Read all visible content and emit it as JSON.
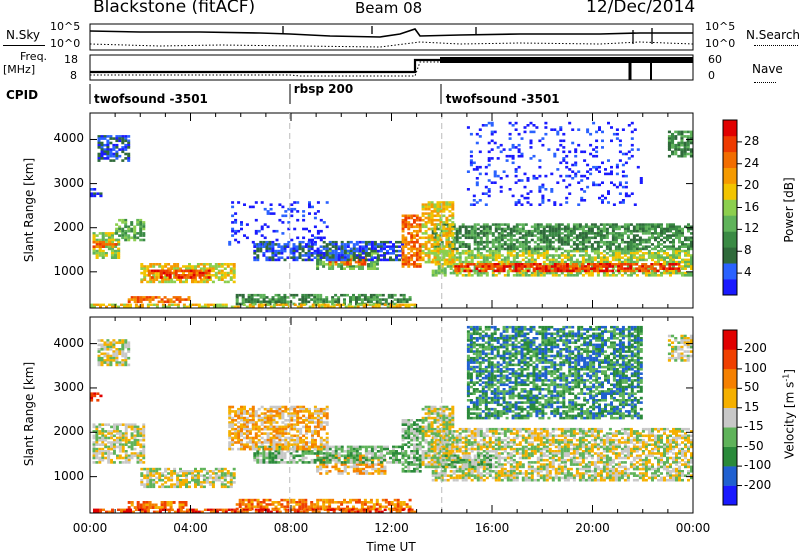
{
  "header": {
    "station": "Blackstone (fitACF)",
    "beam": "Beam 08",
    "date": "12/Dec/2014"
  },
  "summary_panels": {
    "nsky_label": "N.Sky",
    "nsearch_label": "N.Search",
    "freq_label_1": "Freq.",
    "freq_label_2": "[MHz]",
    "nave_label": "Nave",
    "cpid_label": "CPID",
    "n_ticks": [
      "10^5",
      "10^0"
    ],
    "freq_ticks": [
      "18",
      "8"
    ],
    "nave_ticks": [
      "60",
      "0"
    ]
  },
  "cpid_segments": [
    {
      "label": "twofsound -3501",
      "start_hour": 0.0
    },
    {
      "label": "rbsp 200",
      "start_hour": 7.95
    },
    {
      "label": "twofsound -3501",
      "start_hour": 14.0
    }
  ],
  "colorbars": {
    "power": {
      "title": "Power [dB]",
      "ticks": [
        "28",
        "24",
        "20",
        "16",
        "12",
        "8",
        "4"
      ],
      "colors": [
        "#1a1aff",
        "#2a62ff",
        "#2f6a3a",
        "#3a8a44",
        "#5fb35a",
        "#8ccf4e",
        "#f2c400",
        "#f59a00",
        "#f26d00",
        "#ee3a00",
        "#e00000"
      ]
    },
    "velocity": {
      "title_main": "Velocity [m s",
      "title_exp": "-1",
      "title_end": "]",
      "ticks": [
        "200",
        "100",
        "50",
        "15",
        "-15",
        "-50",
        "-100",
        "-200"
      ],
      "colors": [
        "#1a1aff",
        "#2060d0",
        "#2a8a3a",
        "#5fb35a",
        "#c8c8c8",
        "#f5b000",
        "#f58000",
        "#f04000",
        "#e00000"
      ]
    }
  },
  "chart_data": [
    {
      "type": "heatmap",
      "name": "power",
      "ylabel": "Slant Range [km]",
      "ylim": [
        180,
        4600
      ],
      "yticks": [
        "1000",
        "2000",
        "3000",
        "4000"
      ],
      "xlim": [
        0,
        24
      ],
      "scatter_bands": [
        {
          "x0": 0.1,
          "x1": 1.2,
          "y0": 1300,
          "y1": 1900,
          "level": 5
        },
        {
          "x0": 0.1,
          "x1": 1.1,
          "y0": 1550,
          "y1": 1700,
          "level": 8
        },
        {
          "x0": 1.0,
          "x1": 2.2,
          "y0": 1700,
          "y1": 2200,
          "level": 4
        },
        {
          "x0": 2.0,
          "x1": 5.8,
          "y0": 750,
          "y1": 1200,
          "level": 6
        },
        {
          "x0": 2.3,
          "x1": 4.8,
          "y0": 850,
          "y1": 1050,
          "level": 9
        },
        {
          "x0": 1.5,
          "x1": 4.0,
          "y0": 300,
          "y1": 450,
          "level": 8
        },
        {
          "x0": 5.8,
          "x1": 12.8,
          "y0": 250,
          "y1": 500,
          "level": 3
        },
        {
          "x0": 0.0,
          "x1": 13.0,
          "y0": 190,
          "y1": 280,
          "level": 6
        },
        {
          "x0": 9.0,
          "x1": 11.5,
          "y0": 1050,
          "y1": 1500,
          "level": 4
        },
        {
          "x0": 9.5,
          "x1": 11.0,
          "y0": 1150,
          "y1": 1350,
          "level": 8
        },
        {
          "x0": 6.5,
          "x1": 12.5,
          "y0": 1250,
          "y1": 1700,
          "level": 1
        },
        {
          "x0": 12.4,
          "x1": 13.2,
          "y0": 1100,
          "y1": 2300,
          "level": 8
        },
        {
          "x0": 13.6,
          "x1": 24.0,
          "y0": 900,
          "y1": 1500,
          "level": 5
        },
        {
          "x0": 14.5,
          "x1": 23.5,
          "y0": 1000,
          "y1": 1200,
          "level": 9
        },
        {
          "x0": 13.6,
          "x1": 24.0,
          "y0": 1500,
          "y1": 2100,
          "level": 3
        },
        {
          "x0": 13.2,
          "x1": 14.5,
          "y0": 1200,
          "y1": 2600,
          "level": 6
        },
        {
          "x0": 0.3,
          "x1": 1.6,
          "y0": 3500,
          "y1": 4100,
          "level": 1
        },
        {
          "x0": 0.0,
          "x1": 0.5,
          "y0": 2700,
          "y1": 2900,
          "level": 1
        },
        {
          "x0": 23.0,
          "x1": 24.0,
          "y0": 3600,
          "y1": 4200,
          "level": 3
        },
        {
          "x0": 5.5,
          "x1": 9.5,
          "y0": 1600,
          "y1": 2600,
          "level": 0
        },
        {
          "x0": 15.0,
          "x1": 22.0,
          "y0": 2500,
          "y1": 4400,
          "level": 0
        }
      ]
    },
    {
      "type": "heatmap",
      "name": "velocity",
      "ylabel": "Slant Range [km]",
      "xlabel": "Time UT",
      "ylim": [
        180,
        4600
      ],
      "yticks": [
        "1000",
        "2000",
        "3000",
        "4000"
      ],
      "xlim": [
        0,
        24
      ],
      "xticks": [
        "00:00",
        "04:00",
        "08:00",
        "12:00",
        "16:00",
        "20:00",
        "00:00"
      ],
      "scatter_bands": [
        {
          "x0": 0.1,
          "x1": 2.2,
          "y0": 1300,
          "y1": 2200,
          "level": 4
        },
        {
          "x0": 2.0,
          "x1": 5.8,
          "y0": 750,
          "y1": 1200,
          "level": 4
        },
        {
          "x0": 1.5,
          "x1": 4.0,
          "y0": 280,
          "y1": 450,
          "level": 6
        },
        {
          "x0": 5.8,
          "x1": 12.8,
          "y0": 250,
          "y1": 500,
          "level": 6
        },
        {
          "x0": 0.0,
          "x1": 13.0,
          "y0": 190,
          "y1": 280,
          "level": 7
        },
        {
          "x0": 9.0,
          "x1": 11.8,
          "y0": 1050,
          "y1": 1500,
          "level": 5
        },
        {
          "x0": 6.5,
          "x1": 12.5,
          "y0": 1300,
          "y1": 1700,
          "level": 3
        },
        {
          "x0": 12.4,
          "x1": 13.2,
          "y0": 1100,
          "y1": 2300,
          "level": 3
        },
        {
          "x0": 13.6,
          "x1": 24.0,
          "y0": 900,
          "y1": 2100,
          "level": 4
        },
        {
          "x0": 13.2,
          "x1": 14.5,
          "y0": 1200,
          "y1": 2600,
          "level": 4
        },
        {
          "x0": 14.0,
          "x1": 16.0,
          "y0": 1200,
          "y1": 1500,
          "level": 3
        },
        {
          "x0": 0.3,
          "x1": 1.6,
          "y0": 3500,
          "y1": 4100,
          "level": 4
        },
        {
          "x0": 23.0,
          "x1": 24.0,
          "y0": 3600,
          "y1": 4200,
          "level": 4
        },
        {
          "x0": 0.0,
          "x1": 0.5,
          "y0": 2700,
          "y1": 2900,
          "level": 8
        },
        {
          "x0": 5.5,
          "x1": 9.5,
          "y0": 1600,
          "y1": 2600,
          "level": 5
        },
        {
          "x0": 15.0,
          "x1": 22.0,
          "y0": 2300,
          "y1": 4400,
          "level": 2
        }
      ]
    }
  ]
}
